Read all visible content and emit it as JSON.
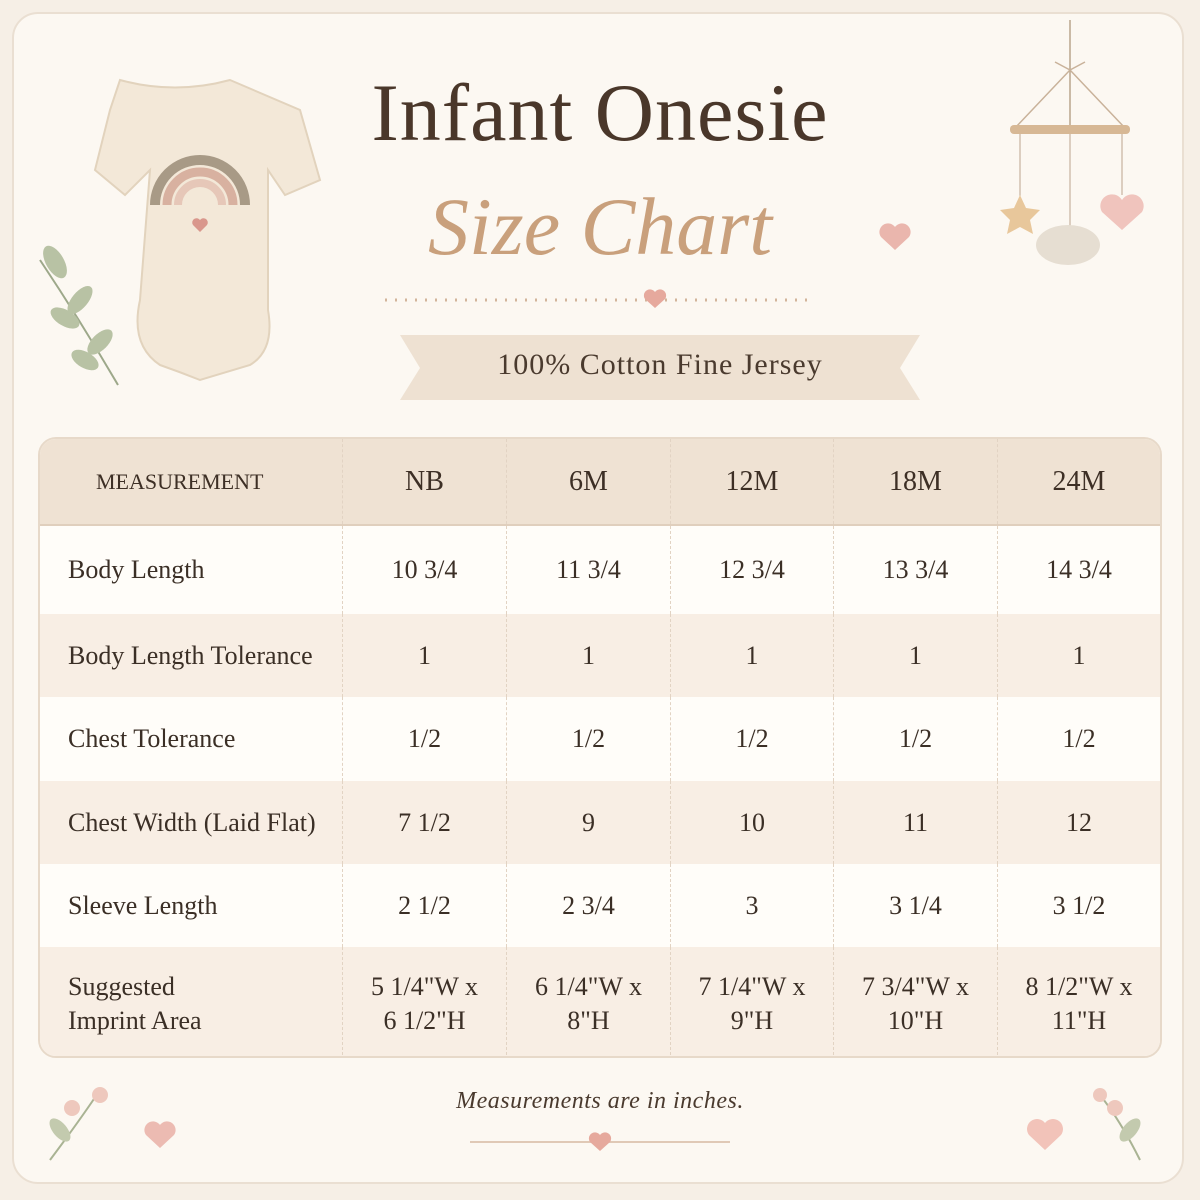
{
  "header": {
    "title": "Infant Onesie",
    "subtitle": "Size Chart",
    "ribbon": "100% Cotton Fine Jersey"
  },
  "table": {
    "columns": [
      "MEASUREMENT",
      "NB",
      "6M",
      "12M",
      "18M",
      "24M"
    ],
    "rows": [
      [
        [
          "Body Length"
        ],
        [
          "10 3/4"
        ],
        [
          "11 3/4"
        ],
        [
          "12 3/4"
        ],
        [
          "13 3/4"
        ],
        [
          "14 3/4"
        ]
      ],
      [
        [
          "Body Length Tolerance"
        ],
        [
          "1"
        ],
        [
          "1"
        ],
        [
          "1"
        ],
        [
          "1"
        ],
        [
          "1"
        ]
      ],
      [
        [
          "Chest Tolerance"
        ],
        [
          "1/2"
        ],
        [
          "1/2"
        ],
        [
          "1/2"
        ],
        [
          "1/2"
        ],
        [
          "1/2"
        ]
      ],
      [
        [
          "Chest Width (Laid Flat)"
        ],
        [
          "7 1/2"
        ],
        [
          "9"
        ],
        [
          "10"
        ],
        [
          "11"
        ],
        [
          "12"
        ]
      ],
      [
        [
          "Sleeve Length"
        ],
        [
          "2 1/2"
        ],
        [
          "2 3/4"
        ],
        [
          "3"
        ],
        [
          "3 1/4"
        ],
        [
          "3 1/2"
        ]
      ],
      [
        [
          "Suggested",
          "Imprint Area"
        ],
        [
          "5 1/4\"W x",
          "6 1/2\"H"
        ],
        [
          "6 1/4\"W x",
          "8\"H"
        ],
        [
          "7 1/4\"W x",
          "9\"H"
        ],
        [
          "7 3/4\"W x",
          "10\"H"
        ],
        [
          "8 1/2\"W x",
          "11\"H"
        ]
      ]
    ]
  },
  "footer": {
    "note": "Measurements are in inches."
  }
}
